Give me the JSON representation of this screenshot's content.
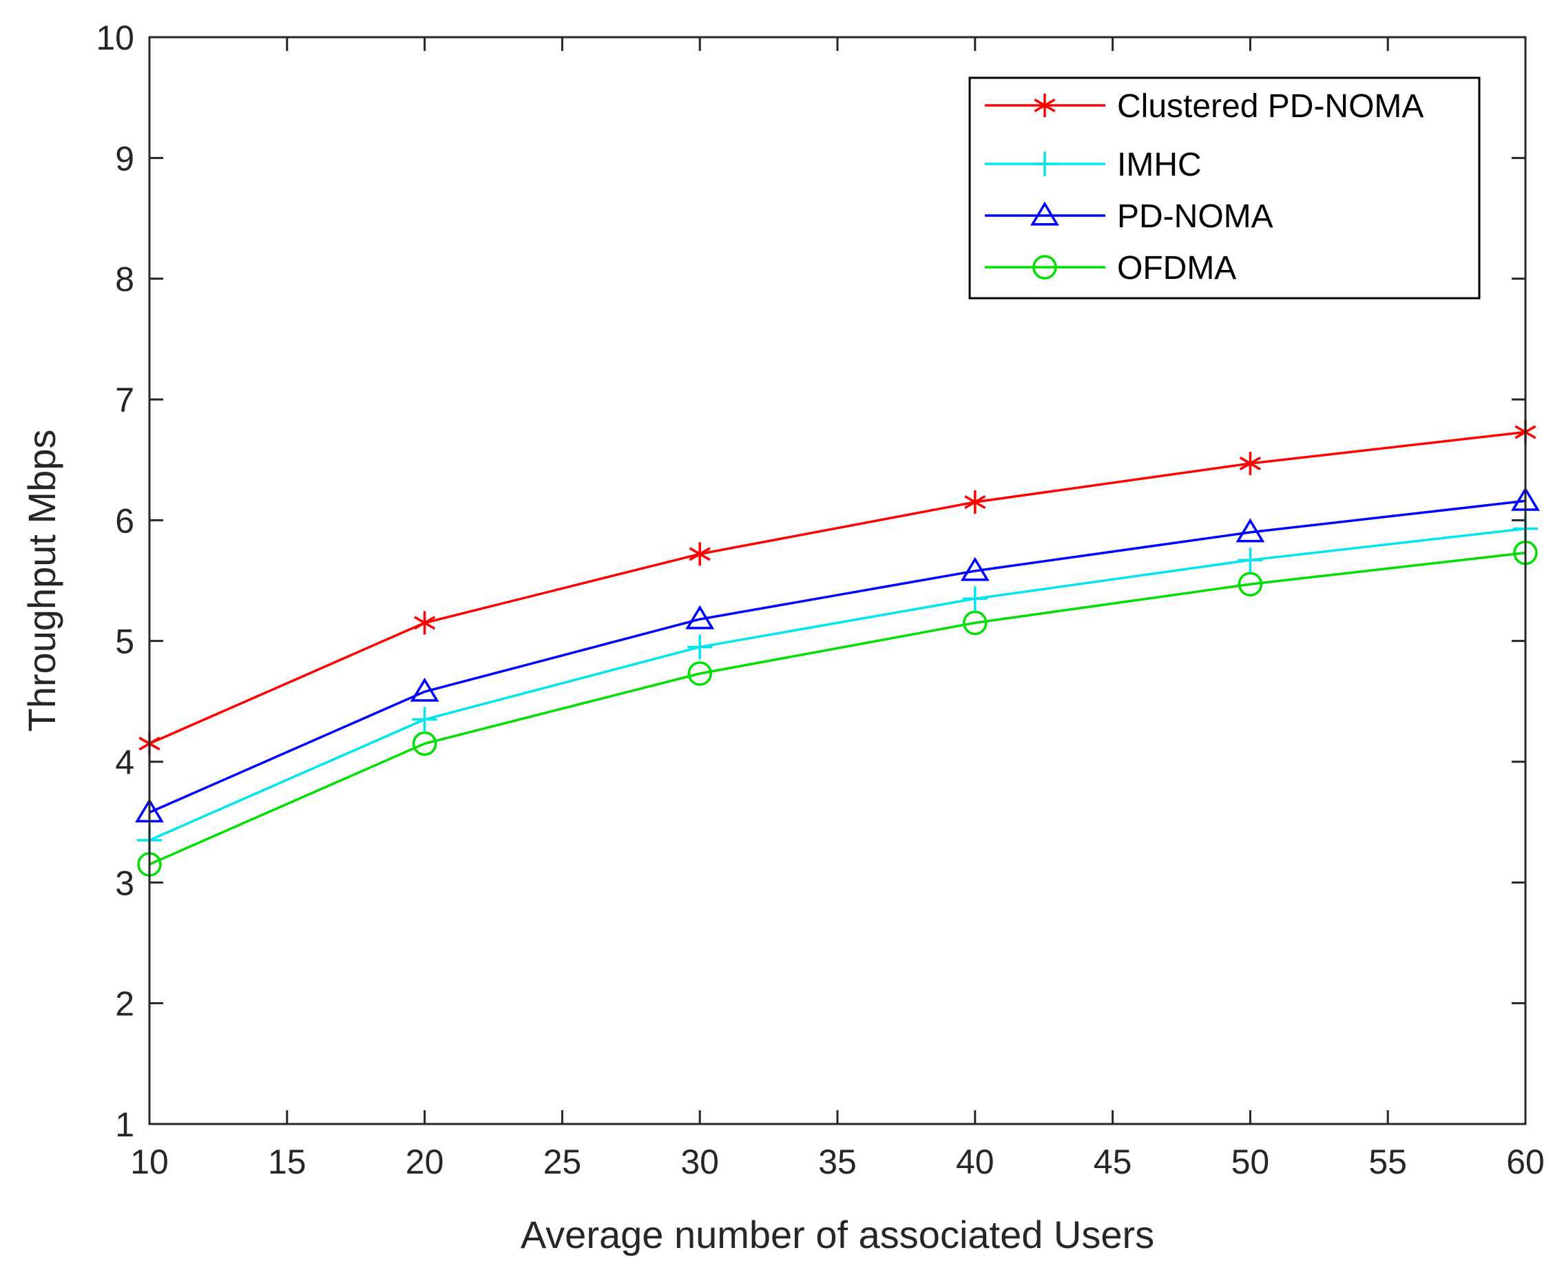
{
  "chart_data": {
    "type": "line",
    "title": "",
    "xlabel": "Average number of associated Users",
    "ylabel": "Throughput Mbps",
    "xlim": [
      10,
      60
    ],
    "ylim": [
      1,
      10
    ],
    "xticks": [
      10,
      15,
      20,
      25,
      30,
      35,
      40,
      45,
      50,
      55,
      60
    ],
    "yticks": [
      1,
      2,
      3,
      4,
      5,
      6,
      7,
      8,
      9,
      10
    ],
    "x": [
      10,
      20,
      30,
      40,
      50,
      60
    ],
    "legend_location": "top-right",
    "grid": false,
    "series": [
      {
        "name": "Clustered PD-NOMA",
        "color": "#ff0000",
        "marker": "asterisk",
        "values": [
          4.15,
          5.15,
          5.72,
          6.15,
          6.47,
          6.73
        ]
      },
      {
        "name": "IMHC",
        "color": "#00e5ee",
        "marker": "plus",
        "values": [
          3.35,
          4.35,
          4.95,
          5.35,
          5.67,
          5.93
        ]
      },
      {
        "name": "PD-NOMA",
        "color": "#0000ff",
        "marker": "triangle",
        "values": [
          3.58,
          4.58,
          5.18,
          5.58,
          5.9,
          6.16
        ]
      },
      {
        "name": "OFDMA",
        "color": "#00e000",
        "marker": "circle",
        "values": [
          3.15,
          4.15,
          4.73,
          5.15,
          5.47,
          5.73
        ]
      }
    ]
  }
}
